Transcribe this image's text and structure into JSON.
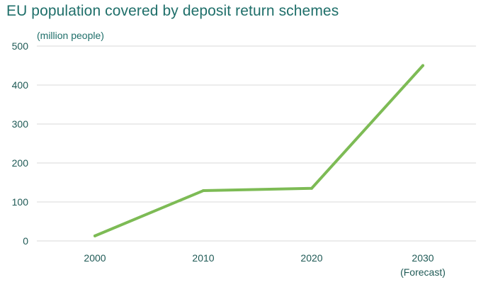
{
  "chart_data": {
    "type": "line",
    "title": "EU population covered by deposit return schemes",
    "unit_label": "(million people)",
    "categories": [
      "2000",
      "2010",
      "2020",
      "2030"
    ],
    "category_sublabels": [
      "",
      "",
      "",
      "(Forecast)"
    ],
    "values": [
      13,
      129,
      135,
      450
    ],
    "ylim": [
      0,
      500
    ],
    "yticks": [
      0,
      100,
      200,
      300,
      400,
      500
    ],
    "grid": true,
    "colors": {
      "line": "#7dbb55",
      "grid": "#d9d9d9",
      "text": "#1f6f6a"
    }
  }
}
